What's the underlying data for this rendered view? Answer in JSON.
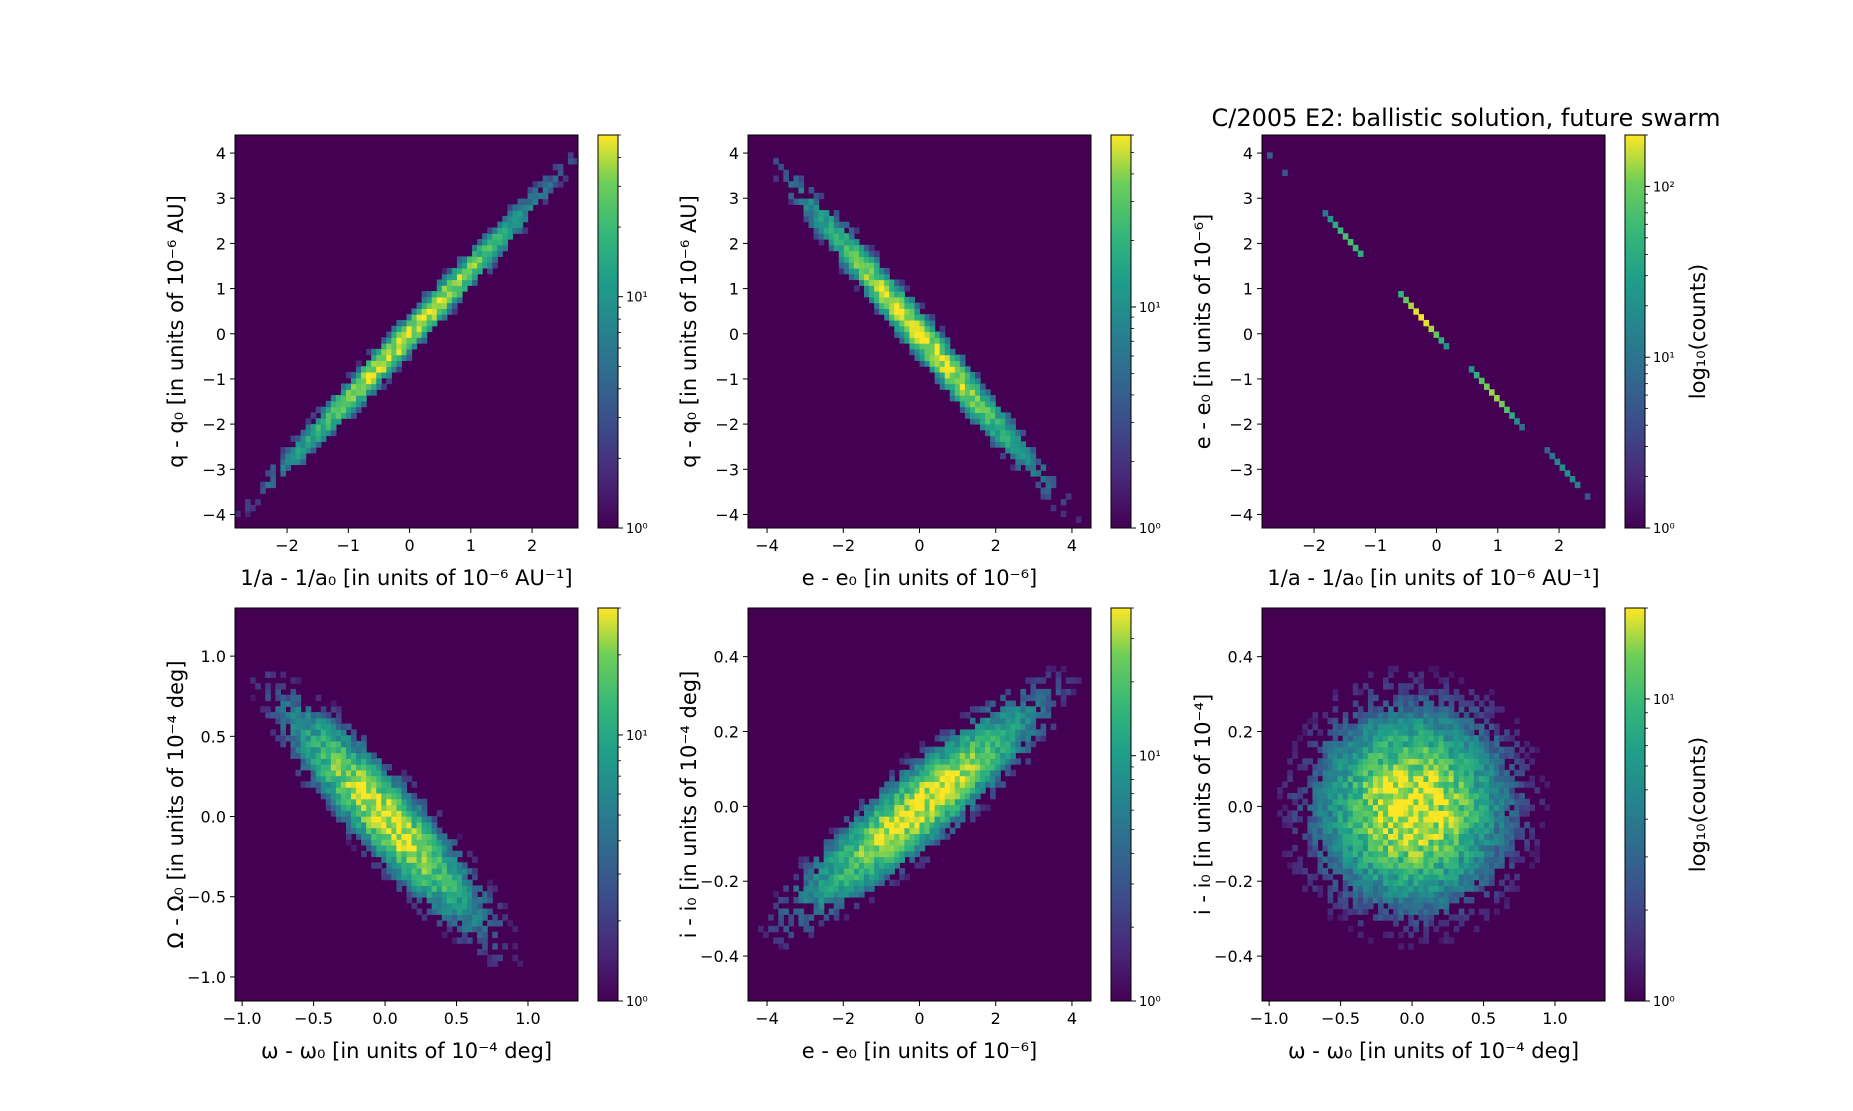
{
  "figure": {
    "title": "C/2005 E2:  ballistic solution, future swarm"
  },
  "chart_data": [
    {
      "type": "heatmap",
      "id": "p1",
      "xlabel": "1/a - 1/a₀ [in units of 10⁻⁶ AU⁻¹]",
      "ylabel": "q - q₀ [in units of 10⁻⁶ AU]",
      "xlim": [
        -2.85,
        2.75
      ],
      "ylim": [
        -4.3,
        4.4
      ],
      "xticks": [
        -2,
        -1,
        0,
        1,
        2
      ],
      "xtick_labels": [
        "−2",
        "−1",
        "0",
        "1",
        "2"
      ],
      "yticks": [
        -4,
        -3,
        -2,
        -1,
        0,
        1,
        2,
        3,
        4
      ],
      "ytick_labels": [
        "−4",
        "−3",
        "−2",
        "−1",
        "0",
        "1",
        "2",
        "3",
        "4"
      ],
      "distribution": {
        "sx": 1.0,
        "sy": 1.45,
        "corr": 0.99
      },
      "colorbar": {
        "scale": "log",
        "vmin": 1,
        "vmax": 50,
        "ticks": [
          {
            "value": 1,
            "label": "10⁰"
          },
          {
            "value": 10,
            "label": "10¹"
          }
        ],
        "label": ""
      }
    },
    {
      "type": "heatmap",
      "id": "p2",
      "xlabel": "e - e₀ [in units of 10⁻⁶]",
      "ylabel": "q - q₀ [in units of 10⁻⁶ AU]",
      "xlim": [
        -4.5,
        4.5
      ],
      "ylim": [
        -4.3,
        4.4
      ],
      "xticks": [
        -4,
        -2,
        0,
        2,
        4
      ],
      "xtick_labels": [
        "−4",
        "−2",
        "0",
        "2",
        "4"
      ],
      "yticks": [
        -4,
        -3,
        -2,
        -1,
        0,
        1,
        2,
        3,
        4
      ],
      "ytick_labels": [
        "−4",
        "−3",
        "−2",
        "−1",
        "0",
        "1",
        "2",
        "3",
        "4"
      ],
      "distribution": {
        "sx": 1.45,
        "sy": 1.45,
        "corr": -0.985
      },
      "colorbar": {
        "scale": "log",
        "vmin": 1,
        "vmax": 60,
        "ticks": [
          {
            "value": 1,
            "label": "10⁰"
          },
          {
            "value": 10,
            "label": "10¹"
          }
        ],
        "label": ""
      }
    },
    {
      "type": "heatmap",
      "id": "p3",
      "xlabel": "1/a - 1/a₀ [in units of 10⁻⁶ AU⁻¹]",
      "ylabel": "e - e₀ [in units of 10⁻⁶]",
      "xlim": [
        -2.85,
        2.75
      ],
      "ylim": [
        -4.3,
        4.4
      ],
      "xticks": [
        -2,
        -1,
        0,
        1,
        2
      ],
      "xtick_labels": [
        "−2",
        "−1",
        "0",
        "1",
        "2"
      ],
      "yticks": [
        -4,
        -3,
        -2,
        -1,
        0,
        1,
        2,
        3,
        4
      ],
      "ytick_labels": [
        "−4",
        "−3",
        "−2",
        "−1",
        "0",
        "1",
        "2",
        "3",
        "4"
      ],
      "distribution": {
        "sx": 1.0,
        "sy": 1.45,
        "corr": -0.9999
      },
      "colorbar": {
        "scale": "log",
        "vmin": 1,
        "vmax": 200,
        "ticks": [
          {
            "value": 1,
            "label": "10⁰"
          },
          {
            "value": 10,
            "label": "10¹"
          },
          {
            "value": 100,
            "label": "10²"
          }
        ],
        "label": "log₁₀(counts)"
      }
    },
    {
      "type": "heatmap",
      "id": "p4",
      "xlabel": "ω - ω₀ [in units of 10⁻⁴ deg]",
      "ylabel": "Ω - Ω₀ [in units of 10⁻⁴ deg]",
      "xlim": [
        -1.05,
        1.35
      ],
      "ylim": [
        -1.15,
        1.3
      ],
      "xticks": [
        -1.0,
        -0.5,
        0.0,
        0.5,
        1.0
      ],
      "xtick_labels": [
        "−1.0",
        "−0.5",
        "0.0",
        "0.5",
        "1.0"
      ],
      "yticks": [
        -1.0,
        -0.5,
        0.0,
        0.5,
        1.0
      ],
      "ytick_labels": [
        "−1.0",
        "−0.5",
        "0.0",
        "0.5",
        "1.0"
      ],
      "distribution": {
        "sx": 0.33,
        "sy": 0.33,
        "corr": -0.9
      },
      "colorbar": {
        "scale": "log",
        "vmin": 1,
        "vmax": 30,
        "ticks": [
          {
            "value": 1,
            "label": "10⁰"
          },
          {
            "value": 10,
            "label": "10¹"
          }
        ],
        "label": ""
      }
    },
    {
      "type": "heatmap",
      "id": "p5",
      "xlabel": "e - e₀ [in units of 10⁻⁶]",
      "ylabel": "i - i₀ [in units of 10⁻⁴ deg]",
      "xlim": [
        -4.5,
        4.5
      ],
      "ylim": [
        -0.52,
        0.53
      ],
      "xticks": [
        -4,
        -2,
        0,
        2,
        4
      ],
      "xtick_labels": [
        "−4",
        "−2",
        "0",
        "2",
        "4"
      ],
      "yticks": [
        -0.4,
        -0.2,
        0.0,
        0.2,
        0.4
      ],
      "ytick_labels": [
        "−0.4",
        "−0.2",
        "0.0",
        "0.2",
        "0.4"
      ],
      "distribution": {
        "sx": 1.45,
        "sy": 0.13,
        "corr": 0.9
      },
      "colorbar": {
        "scale": "log",
        "vmin": 1,
        "vmax": 40,
        "ticks": [
          {
            "value": 1,
            "label": "10⁰"
          },
          {
            "value": 10,
            "label": "10¹"
          }
        ],
        "label": ""
      }
    },
    {
      "type": "heatmap",
      "id": "p6",
      "xlabel": "ω - ω₀ [in units of 10⁻⁴ deg]",
      "ylabel": "i - i₀ [in units of 10⁻⁴]",
      "xlim": [
        -1.05,
        1.35
      ],
      "ylim": [
        -0.52,
        0.53
      ],
      "xticks": [
        -1.0,
        -0.5,
        0.0,
        0.5,
        1.0
      ],
      "xtick_labels": [
        "−1.0",
        "−0.5",
        "0.0",
        "0.5",
        "1.0"
      ],
      "yticks": [
        -0.4,
        -0.2,
        0.0,
        0.2,
        0.4
      ],
      "ytick_labels": [
        "−0.4",
        "−0.2",
        "0.0",
        "0.2",
        "0.4"
      ],
      "distribution": {
        "sx": 0.33,
        "sy": 0.13,
        "corr": 0.0
      },
      "colorbar": {
        "scale": "log",
        "vmin": 1,
        "vmax": 20,
        "ticks": [
          {
            "value": 1,
            "label": "10⁰"
          },
          {
            "value": 10,
            "label": "10¹"
          }
        ],
        "label": "log₁₀(counts)"
      }
    }
  ]
}
